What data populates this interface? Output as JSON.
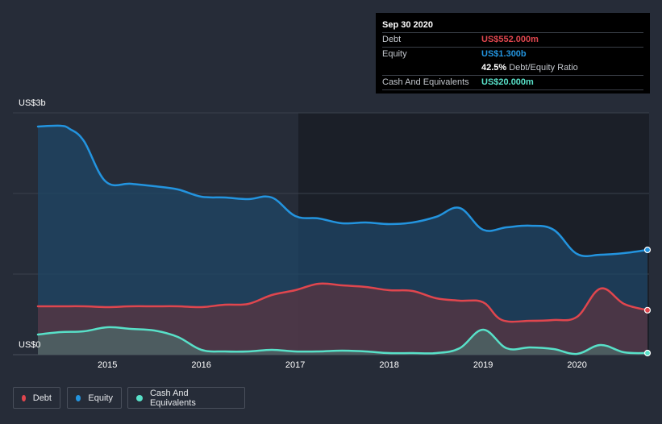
{
  "colors": {
    "debt": "#e0464e",
    "equity": "#2394df",
    "cash": "#58e0c8",
    "grid": "#3a404c",
    "background": "#262c38",
    "plot_dark": "#1b1f28"
  },
  "tooltip": {
    "date": "Sep 30 2020",
    "debt_label": "Debt",
    "debt_value": "US$552.000m",
    "equity_label": "Equity",
    "equity_value": "US$1.300b",
    "ratio_value": "42.5%",
    "ratio_label": "Debt/Equity Ratio",
    "cash_label": "Cash And Equivalents",
    "cash_value": "US$20.000m"
  },
  "legend": {
    "debt": "Debt",
    "equity": "Equity",
    "cash": "Cash And Equivalents"
  },
  "chart_data": {
    "type": "area",
    "y_unit": "US$ billions",
    "y_top_label": "US$3b",
    "y_bottom_label": "US$0",
    "ylim": [
      0,
      3
    ],
    "xlim": [
      2014.26,
      2020.75
    ],
    "x_tick_labels": [
      "2015",
      "2016",
      "2017",
      "2018",
      "2019",
      "2020"
    ],
    "x_ticks": [
      2015,
      2016,
      2017,
      2018,
      2019,
      2020
    ],
    "grid": true,
    "legend_position": "bottom-left",
    "series": [
      {
        "name": "Equity",
        "key": "equity",
        "x": [
          2014.26,
          2014.5,
          2014.6,
          2014.75,
          2014.98,
          2015.25,
          2015.5,
          2015.75,
          2016.0,
          2016.25,
          2016.5,
          2016.75,
          2017.0,
          2017.25,
          2017.5,
          2017.75,
          2018.0,
          2018.25,
          2018.5,
          2018.75,
          2019.0,
          2019.25,
          2019.5,
          2019.75,
          2020.0,
          2020.25,
          2020.5,
          2020.75
        ],
        "values": [
          2.83,
          2.84,
          2.8,
          2.65,
          2.15,
          2.12,
          2.09,
          2.05,
          1.96,
          1.95,
          1.93,
          1.95,
          1.72,
          1.69,
          1.63,
          1.64,
          1.62,
          1.64,
          1.71,
          1.82,
          1.55,
          1.58,
          1.6,
          1.55,
          1.25,
          1.24,
          1.26,
          1.3
        ]
      },
      {
        "name": "Debt",
        "key": "debt",
        "x": [
          2014.26,
          2014.5,
          2014.75,
          2015.0,
          2015.25,
          2015.5,
          2015.75,
          2016.0,
          2016.25,
          2016.5,
          2016.75,
          2017.0,
          2017.25,
          2017.5,
          2017.75,
          2018.0,
          2018.25,
          2018.5,
          2018.75,
          2019.0,
          2019.2,
          2019.5,
          2019.75,
          2020.0,
          2020.25,
          2020.5,
          2020.75
        ],
        "values": [
          0.6,
          0.6,
          0.6,
          0.59,
          0.6,
          0.6,
          0.6,
          0.59,
          0.62,
          0.63,
          0.74,
          0.8,
          0.88,
          0.86,
          0.84,
          0.8,
          0.79,
          0.7,
          0.67,
          0.65,
          0.43,
          0.42,
          0.43,
          0.47,
          0.82,
          0.63,
          0.552
        ]
      },
      {
        "name": "Cash And Equivalents",
        "key": "cash",
        "x": [
          2014.26,
          2014.5,
          2014.75,
          2015.0,
          2015.25,
          2015.5,
          2015.75,
          2016.0,
          2016.25,
          2016.5,
          2016.75,
          2017.0,
          2017.25,
          2017.5,
          2017.75,
          2018.0,
          2018.25,
          2018.5,
          2018.75,
          2019.0,
          2019.25,
          2019.5,
          2019.75,
          2020.0,
          2020.25,
          2020.5,
          2020.75
        ],
        "values": [
          0.25,
          0.28,
          0.29,
          0.34,
          0.32,
          0.3,
          0.22,
          0.06,
          0.04,
          0.04,
          0.06,
          0.04,
          0.04,
          0.05,
          0.04,
          0.02,
          0.02,
          0.02,
          0.08,
          0.31,
          0.08,
          0.09,
          0.07,
          0.01,
          0.12,
          0.03,
          0.02
        ]
      }
    ]
  }
}
